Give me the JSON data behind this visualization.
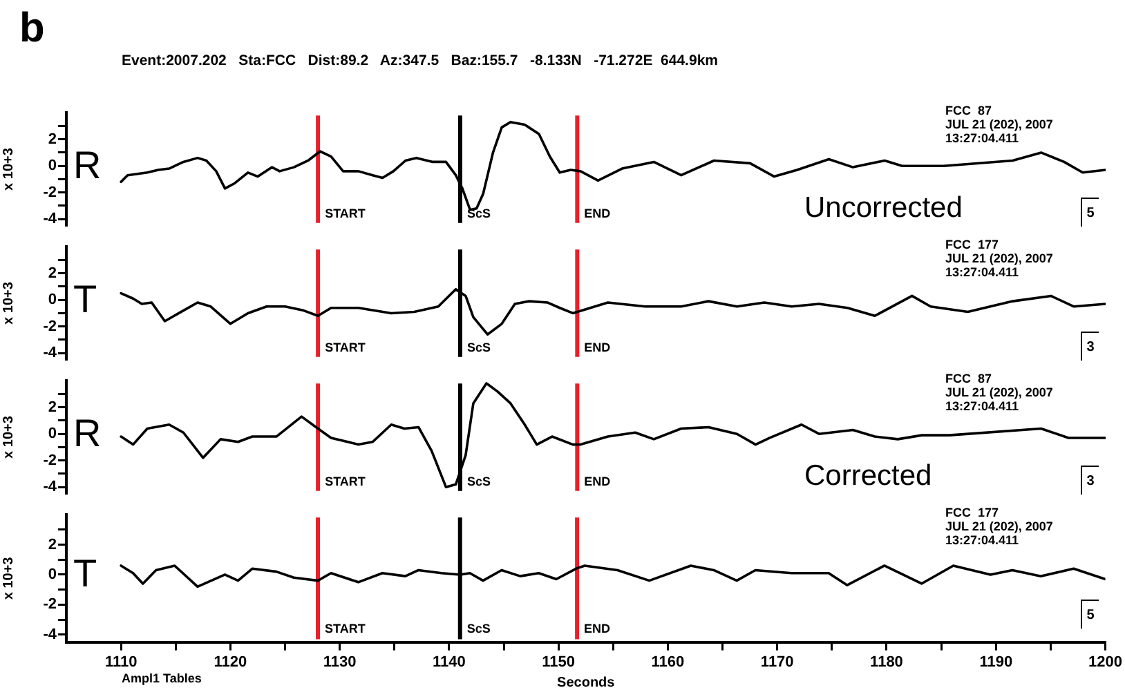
{
  "chart_data": [
    {
      "type": "line",
      "title": "b",
      "subtitle": "Event:2007.202   Sta:FCC   Dist:89.2   Az:347.5   Baz:155.7   -8.133N   -71.272E  644.9km",
      "ylabel": "x 10+3",
      "tick_labels": "y",
      "grid": false,
      "legend": false,
      "marker": "none",
      "line_style": "solid",
      "xlim": [
        1105,
        1200
      ],
      "ylim": [
        -4.5,
        4
      ],
      "yticks": [
        -4,
        {
          "value": -3,
          "label": null
        },
        -2,
        {
          "value": -1,
          "label": null
        },
        0,
        {
          "value": 1,
          "label": null
        },
        2,
        {
          "value": 3,
          "label": null
        }
      ],
      "series": [
        {
          "name": "R",
          "color": "#000000",
          "x": [
            1110,
            1110.6,
            1112.4,
            1113.4,
            1114.4,
            1115.7,
            1117,
            1117.8,
            1118.7,
            1119.5,
            1120.4,
            1121.6,
            1122.5,
            1123.8,
            1124.5,
            1125.8,
            1127.1,
            1128.2,
            1129.2,
            1130.3,
            1131.7,
            1133,
            1133.9,
            1134.9,
            1136,
            1137,
            1138.5,
            1139.7,
            1140.6,
            1141.2,
            1141.9,
            1142.5,
            1143.1,
            1144,
            1144.8,
            1145.6,
            1146.9,
            1148.2,
            1149.2,
            1150.1,
            1151.1,
            1152,
            1153.6,
            1155.8,
            1158.7,
            1161.2,
            1164.2,
            1167.5,
            1169.7,
            1171.8,
            1174.7,
            1176.9,
            1179.8,
            1181.4,
            1185.2,
            1191.5,
            1194.1,
            1196.2,
            1197.9,
            1200
          ],
          "values": [
            -1.2,
            -0.7,
            -0.5,
            -0.3,
            -0.2,
            0.3,
            0.6,
            0.4,
            -0.4,
            -1.7,
            -1.3,
            -0.5,
            -0.8,
            -0.1,
            -0.4,
            -0.1,
            0.4,
            1.1,
            0.7,
            -0.4,
            -0.4,
            -0.7,
            -0.9,
            -0.4,
            0.4,
            0.6,
            0.3,
            0.3,
            -0.7,
            -1.7,
            -3.3,
            -3.2,
            -2.1,
            1.0,
            2.9,
            3.3,
            3.1,
            2.4,
            0.7,
            -0.5,
            -0.3,
            -0.4,
            -1.1,
            -0.2,
            0.3,
            -0.7,
            0.4,
            0.2,
            -0.8,
            -0.3,
            0.5,
            -0.1,
            0.4,
            0,
            0,
            0.4,
            1.0,
            0.3,
            -0.5,
            -0.3
          ]
        }
      ],
      "ref_lines": [
        {
          "axis": "x",
          "value": 1128,
          "label": "START",
          "color": "#e8202a"
        },
        {
          "axis": "x",
          "value": 1141,
          "label": "ScS",
          "color": "#000000"
        },
        {
          "axis": "x",
          "value": 1151.7,
          "label": "END",
          "color": "#e8202a"
        }
      ],
      "annotations": [
        "FCC  87",
        "JUL 21 (202), 2007",
        "13:27:04.411",
        "5",
        "Uncorrected"
      ]
    },
    {
      "type": "line",
      "ylabel": "x 10+3",
      "tick_labels": "y",
      "grid": false,
      "legend": false,
      "marker": "none",
      "line_style": "solid",
      "xlim": [
        1105,
        1200
      ],
      "ylim": [
        -4.5,
        4
      ],
      "yticks": [
        -4,
        {
          "value": -3,
          "label": null
        },
        -2,
        {
          "value": -1,
          "label": null
        },
        0,
        {
          "value": 1,
          "label": null
        },
        2,
        {
          "value": 3,
          "label": null
        }
      ],
      "series": [
        {
          "name": "T",
          "color": "#000000",
          "x": [
            1110,
            1111.1,
            1111.9,
            1112.8,
            1114,
            1115.7,
            1117,
            1118.2,
            1120,
            1121.6,
            1123.3,
            1125,
            1126.7,
            1128,
            1129.2,
            1131.7,
            1134.7,
            1136.8,
            1139,
            1140.6,
            1141.5,
            1142.2,
            1143.5,
            1144.8,
            1146,
            1147.3,
            1149,
            1150.1,
            1151.3,
            1154.5,
            1157.9,
            1161.2,
            1163.7,
            1166.3,
            1168.8,
            1171.3,
            1173.8,
            1176.4,
            1178.9,
            1182.3,
            1184,
            1187.4,
            1191.5,
            1195,
            1197.1,
            1200
          ],
          "values": [
            0.5,
            0.1,
            -0.3,
            -0.2,
            -1.6,
            -0.8,
            -0.2,
            -0.5,
            -1.8,
            -1,
            -0.5,
            -0.5,
            -0.8,
            -1.2,
            -0.6,
            -0.6,
            -1,
            -0.9,
            -0.5,
            0.8,
            0.3,
            -1.3,
            -2.6,
            -1.8,
            -0.3,
            -0.1,
            -0.2,
            -0.6,
            -1,
            -0.2,
            -0.5,
            -0.5,
            -0.1,
            -0.5,
            -0.2,
            -0.5,
            -0.3,
            -0.6,
            -1.2,
            0.3,
            -0.5,
            -0.9,
            -0.1,
            0.3,
            -0.5,
            -0.3
          ]
        }
      ],
      "ref_lines": [
        {
          "axis": "x",
          "value": 1128,
          "label": "START",
          "color": "#e8202a"
        },
        {
          "axis": "x",
          "value": 1141,
          "label": "ScS",
          "color": "#000000"
        },
        {
          "axis": "x",
          "value": 1151.7,
          "label": "END",
          "color": "#e8202a"
        }
      ],
      "annotations": [
        "FCC  177",
        "JUL 21 (202), 2007",
        "13:27:04.411",
        "3"
      ]
    },
    {
      "type": "line",
      "ylabel": "x 10+3",
      "tick_labels": "y",
      "grid": false,
      "legend": false,
      "marker": "none",
      "line_style": "solid",
      "xlim": [
        1105,
        1200
      ],
      "ylim": [
        -4.5,
        4
      ],
      "yticks": [
        -4,
        {
          "value": -3,
          "label": null
        },
        -2,
        {
          "value": -1,
          "label": null
        },
        0,
        {
          "value": 1,
          "label": null
        },
        2,
        {
          "value": 3,
          "label": null
        }
      ],
      "series": [
        {
          "name": "R",
          "color": "#000000",
          "x": [
            1110,
            1111.1,
            1112.4,
            1114.4,
            1115.7,
            1117.5,
            1119.1,
            1120.7,
            1122,
            1124.2,
            1126.5,
            1128,
            1129.2,
            1131.7,
            1133,
            1134.7,
            1135.9,
            1137.2,
            1138.4,
            1139.7,
            1140.6,
            1141.5,
            1142.2,
            1143.4,
            1144.4,
            1145.6,
            1146.9,
            1148,
            1149.4,
            1151.3,
            1152,
            1154.5,
            1157,
            1158.7,
            1161.2,
            1163.7,
            1166.3,
            1168,
            1169.3,
            1172.2,
            1173.8,
            1176.9,
            1178.9,
            1181,
            1183.2,
            1185.7,
            1194.1,
            1196.6,
            1200
          ],
          "values": [
            -0.2,
            -0.8,
            0.4,
            0.7,
            0.1,
            -1.8,
            -0.4,
            -0.6,
            -0.2,
            -0.2,
            1.3,
            0.4,
            -0.3,
            -0.8,
            -0.6,
            0.7,
            0.4,
            0.5,
            -1.3,
            -4,
            -3.8,
            -1.6,
            2.3,
            3.8,
            3.2,
            2.3,
            0.7,
            -0.8,
            -0.2,
            -0.8,
            -0.8,
            -0.2,
            0.1,
            -0.4,
            0.4,
            0.5,
            0,
            -0.8,
            -0.3,
            0.7,
            0,
            0.3,
            -0.2,
            -0.4,
            -0.1,
            -0.1,
            0.4,
            -0.3,
            -0.3
          ]
        }
      ],
      "ref_lines": [
        {
          "axis": "x",
          "value": 1128,
          "label": "START",
          "color": "#e8202a"
        },
        {
          "axis": "x",
          "value": 1141,
          "label": "ScS",
          "color": "#000000"
        },
        {
          "axis": "x",
          "value": 1151.7,
          "label": "END",
          "color": "#e8202a"
        }
      ],
      "annotations": [
        "FCC  87",
        "JUL 21 (202), 2007",
        "13:27:04.411",
        "3",
        "Corrected"
      ]
    },
    {
      "type": "line",
      "xlabel": "Seconds",
      "ylabel": "x 10+3",
      "grid": false,
      "legend": false,
      "marker": "none",
      "line_style": "solid",
      "xlim": [
        1105,
        1200
      ],
      "xticks": [
        1110,
        {
          "value": 1115,
          "label": null
        },
        1120,
        {
          "value": 1125,
          "label": null
        },
        1130,
        {
          "value": 1135,
          "label": null
        },
        1140,
        {
          "value": 1145,
          "label": null
        },
        1150,
        {
          "value": 1155,
          "label": null
        },
        1160,
        {
          "value": 1165,
          "label": null
        },
        1170,
        {
          "value": 1175,
          "label": null
        },
        1180,
        {
          "value": 1185,
          "label": null
        },
        1190,
        {
          "value": 1195,
          "label": null
        },
        1200
      ],
      "ylim": [
        -4.5,
        4
      ],
      "yticks": [
        -4,
        {
          "value": -3,
          "label": null
        },
        -2,
        {
          "value": -1,
          "label": null
        },
        0,
        {
          "value": 1,
          "label": null
        },
        2,
        {
          "value": 3,
          "label": null
        }
      ],
      "series": [
        {
          "name": "T",
          "color": "#000000",
          "x": [
            1110,
            1111.1,
            1112,
            1113.2,
            1114.9,
            1117,
            1119.5,
            1120.7,
            1122,
            1124.2,
            1125.8,
            1128,
            1129.2,
            1131.7,
            1133.9,
            1136,
            1137.2,
            1139.3,
            1141,
            1141.9,
            1143.1,
            1144.8,
            1146.5,
            1148.2,
            1149.8,
            1151.6,
            1152.4,
            1155.4,
            1158.3,
            1162.1,
            1164.2,
            1166.3,
            1168,
            1171.3,
            1174.7,
            1176.4,
            1179.8,
            1183.2,
            1186.1,
            1189.5,
            1191.5,
            1194.1,
            1197.1,
            1200
          ],
          "values": [
            0.6,
            0.1,
            -0.6,
            0.3,
            0.6,
            -0.8,
            0,
            -0.4,
            0.4,
            0.2,
            -0.2,
            -0.4,
            0.1,
            -0.5,
            0.1,
            -0.1,
            0.3,
            0.1,
            0,
            0.1,
            -0.4,
            0.3,
            -0.1,
            0.1,
            -0.3,
            0.4,
            0.6,
            0.3,
            -0.4,
            0.6,
            0.3,
            -0.4,
            0.3,
            0.1,
            0.1,
            -0.7,
            0.6,
            -0.6,
            0.6,
            0,
            0.3,
            -0.1,
            0.4,
            -0.3
          ]
        }
      ],
      "ref_lines": [
        {
          "axis": "x",
          "value": 1128,
          "label": "START",
          "color": "#e8202a"
        },
        {
          "axis": "x",
          "value": 1141,
          "label": "ScS",
          "color": "#000000"
        },
        {
          "axis": "x",
          "value": 1151.7,
          "label": "END",
          "color": "#e8202a"
        }
      ],
      "annotations": [
        "FCC  177",
        "JUL 21 (202), 2007",
        "13:27:04.411",
        "5",
        "Ampl1 Tables"
      ]
    }
  ]
}
